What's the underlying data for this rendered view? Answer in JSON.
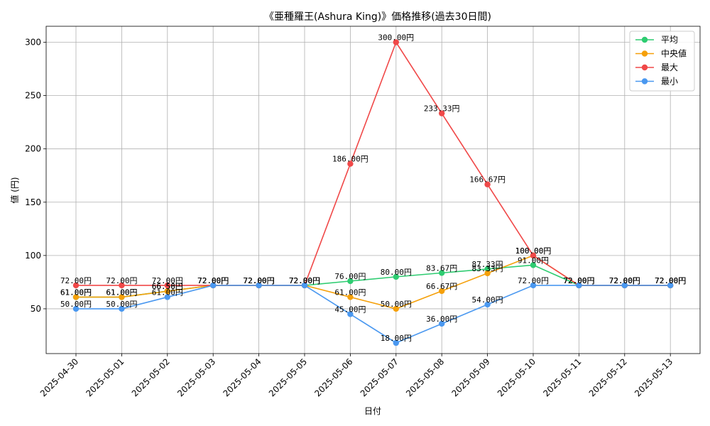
{
  "chart_data": {
    "type": "line",
    "title": "《亜種羅王(Ashura King)》価格推移(過去30日間)",
    "xlabel": "日付",
    "ylabel": "値 (円)",
    "categories": [
      "2025-04-30",
      "2025-05-01",
      "2025-05-02",
      "2025-05-03",
      "2025-05-04",
      "2025-05-05",
      "2025-05-06",
      "2025-05-07",
      "2025-05-08",
      "2025-05-09",
      "2025-05-10",
      "2025-05-11",
      "2025-05-12",
      "2025-05-13"
    ],
    "ylim": [
      8,
      315
    ],
    "yticks": [
      50,
      100,
      150,
      200,
      250,
      300
    ],
    "grid": true,
    "legend_position": "top-right",
    "value_suffix": "円",
    "series": [
      {
        "name": "平均",
        "color": "#2ecc71",
        "values": [
          61.0,
          61.0,
          66.56,
          72.0,
          72.0,
          72.0,
          76.0,
          80.0,
          83.67,
          87.33,
          91.0,
          72.0,
          72.0,
          72.0
        ]
      },
      {
        "name": "中央値",
        "color": "#f5a00a",
        "values": [
          61.0,
          61.0,
          66.5,
          72.0,
          72.0,
          72.0,
          61.0,
          50.0,
          66.67,
          83.33,
          100.0,
          72.0,
          72.0,
          72.0
        ]
      },
      {
        "name": "最大",
        "color": "#f04848",
        "values": [
          72.0,
          72.0,
          72.0,
          72.0,
          72.0,
          72.0,
          186.0,
          300.0,
          233.33,
          166.67,
          100.0,
          72.0,
          72.0,
          72.0
        ]
      },
      {
        "name": "最小",
        "color": "#4a98f0",
        "values": [
          50.0,
          50.0,
          61.0,
          72.0,
          72.0,
          72.0,
          45.0,
          18.0,
          36.0,
          54.0,
          72.0,
          72.0,
          72.0,
          72.0
        ]
      }
    ]
  }
}
